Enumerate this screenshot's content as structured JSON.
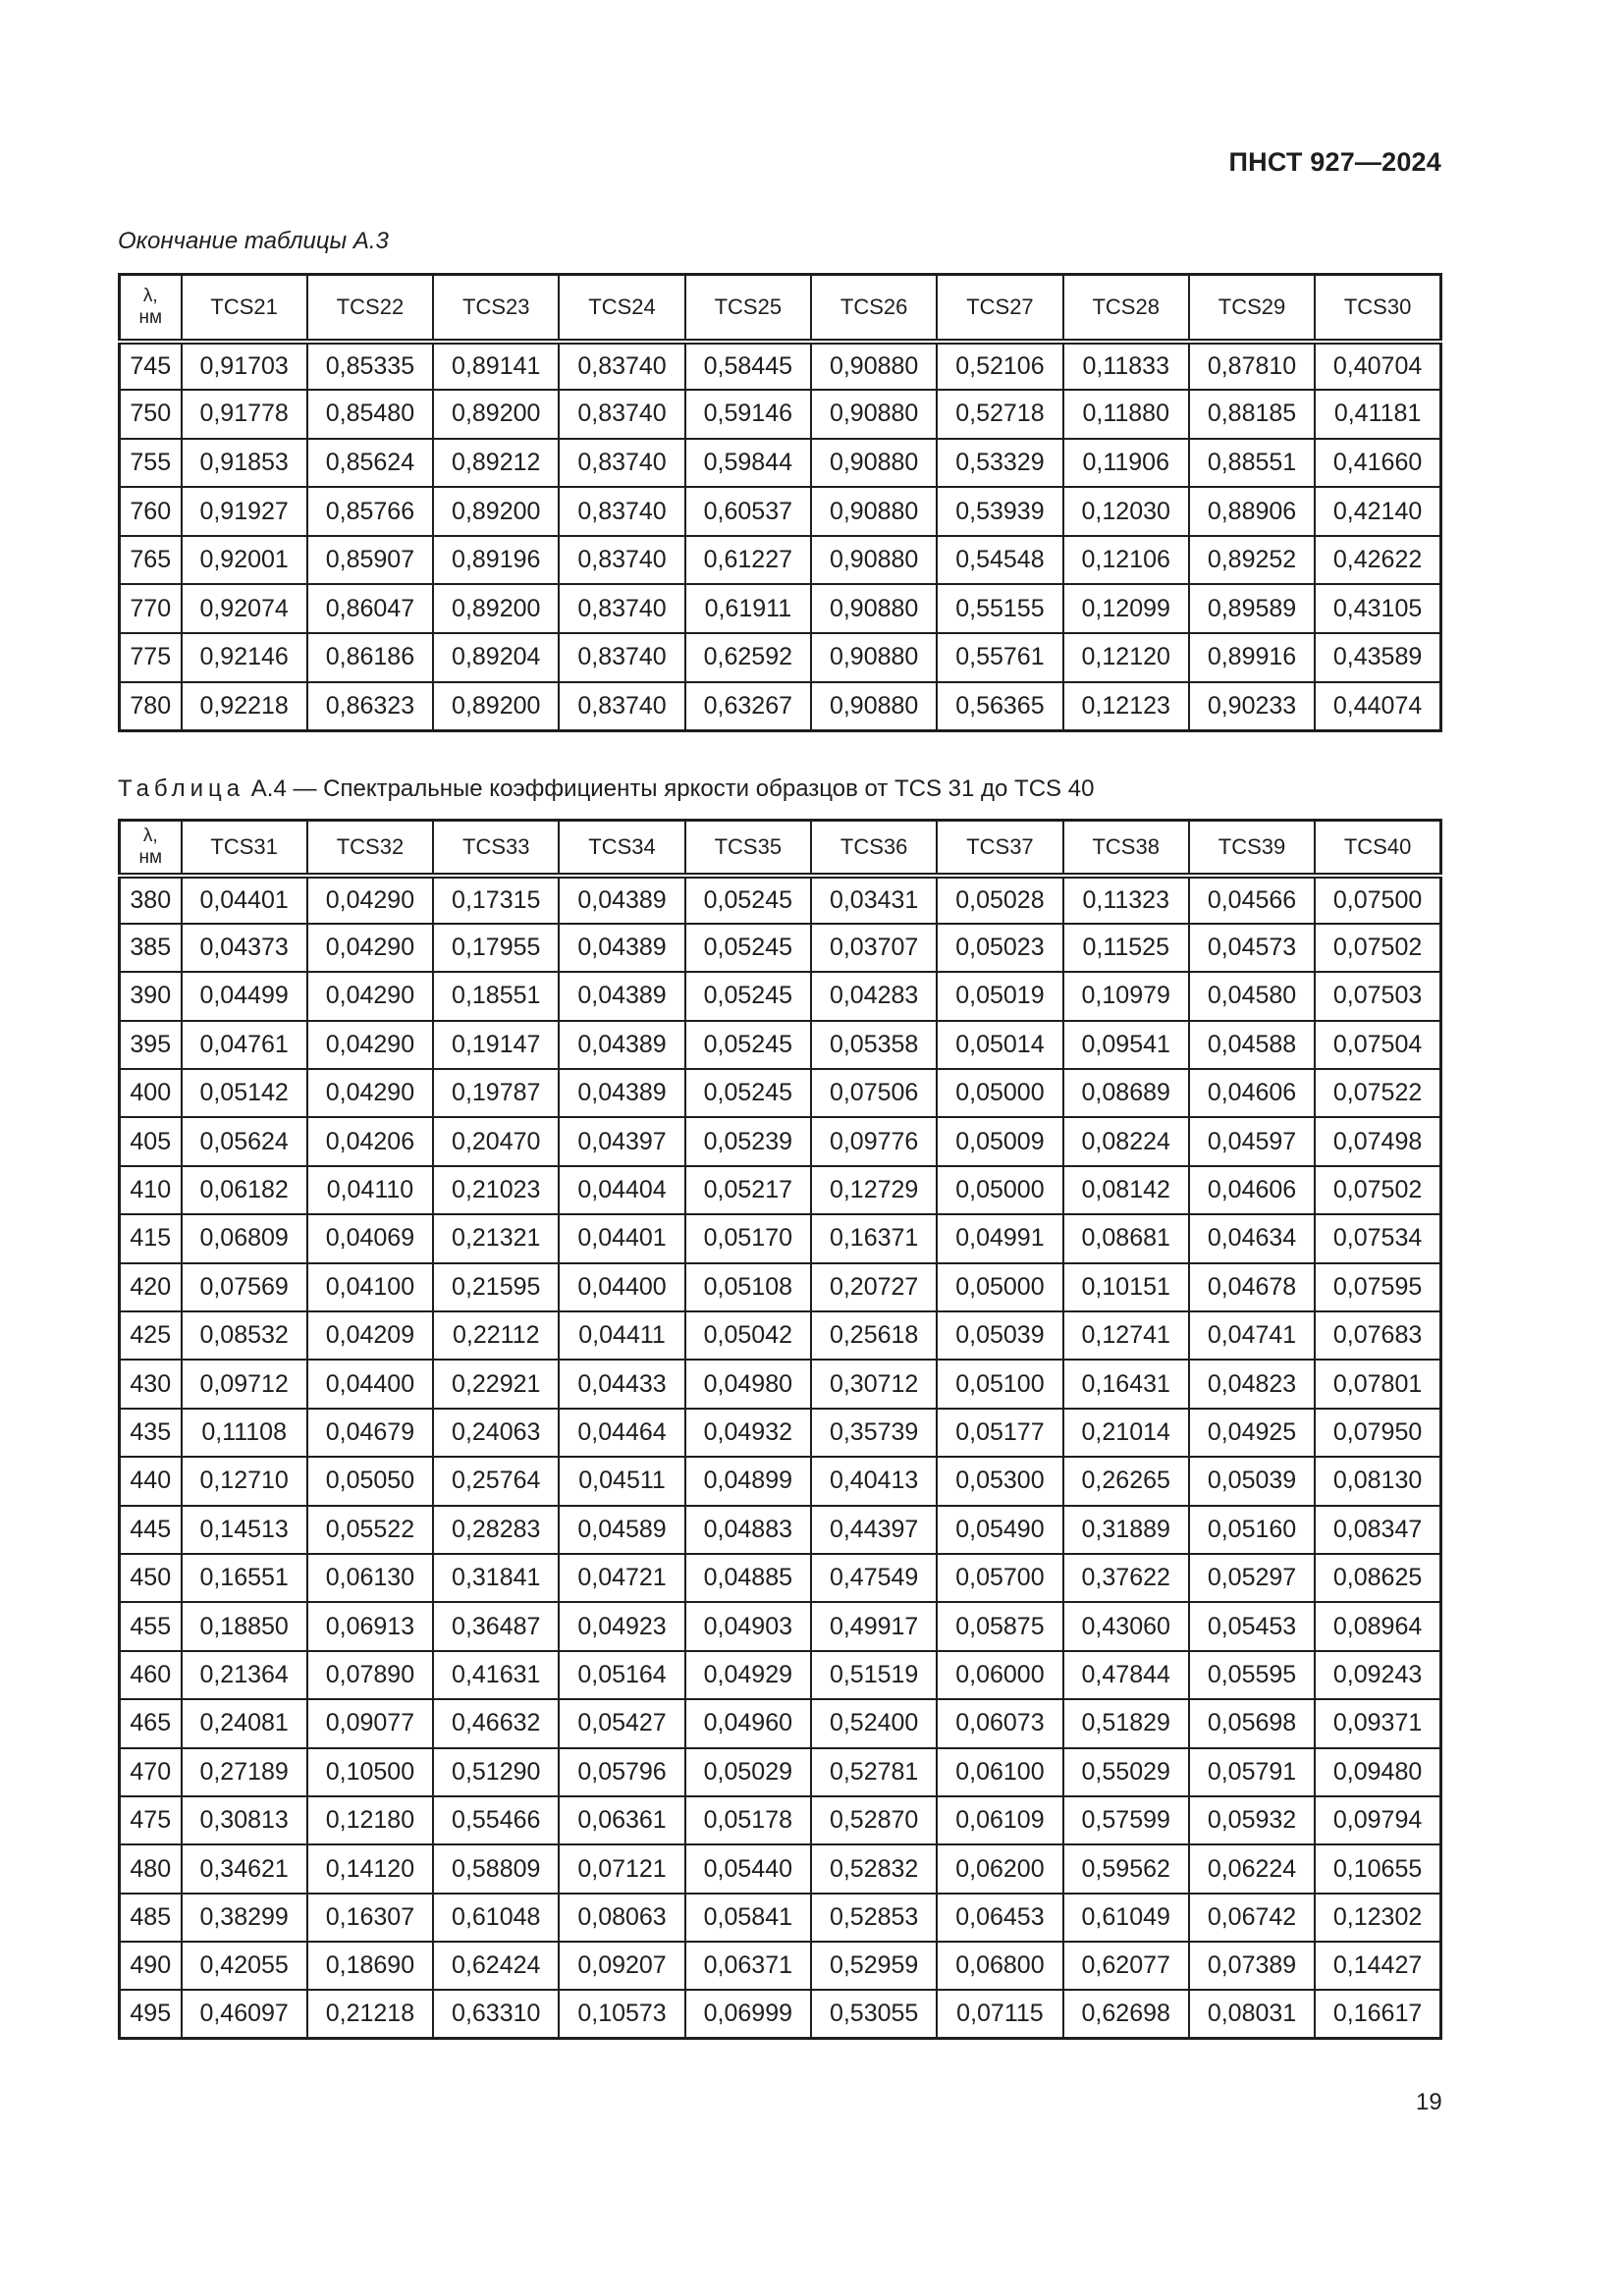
{
  "header": {
    "doc_code": "ПНСТ 927—2024"
  },
  "table_a3": {
    "caption": "Окончание таблицы А.3",
    "lambda_symbol": "λ,",
    "lambda_unit": "нм",
    "columns": [
      "TCS21",
      "TCS22",
      "TCS23",
      "TCS24",
      "TCS25",
      "TCS26",
      "TCS27",
      "TCS28",
      "TCS29",
      "TCS30"
    ],
    "rows": [
      [
        "745",
        "0,91703",
        "0,85335",
        "0,89141",
        "0,83740",
        "0,58445",
        "0,90880",
        "0,52106",
        "0,11833",
        "0,87810",
        "0,40704"
      ],
      [
        "750",
        "0,91778",
        "0,85480",
        "0,89200",
        "0,83740",
        "0,59146",
        "0,90880",
        "0,52718",
        "0,11880",
        "0,88185",
        "0,41181"
      ],
      [
        "755",
        "0,91853",
        "0,85624",
        "0,89212",
        "0,83740",
        "0,59844",
        "0,90880",
        "0,53329",
        "0,11906",
        "0,88551",
        "0,41660"
      ],
      [
        "760",
        "0,91927",
        "0,85766",
        "0,89200",
        "0,83740",
        "0,60537",
        "0,90880",
        "0,53939",
        "0,12030",
        "0,88906",
        "0,42140"
      ],
      [
        "765",
        "0,92001",
        "0,85907",
        "0,89196",
        "0,83740",
        "0,61227",
        "0,90880",
        "0,54548",
        "0,12106",
        "0,89252",
        "0,42622"
      ],
      [
        "770",
        "0,92074",
        "0,86047",
        "0,89200",
        "0,83740",
        "0,61911",
        "0,90880",
        "0,55155",
        "0,12099",
        "0,89589",
        "0,43105"
      ],
      [
        "775",
        "0,92146",
        "0,86186",
        "0,89204",
        "0,83740",
        "0,62592",
        "0,90880",
        "0,55761",
        "0,12120",
        "0,89916",
        "0,43589"
      ],
      [
        "780",
        "0,92218",
        "0,86323",
        "0,89200",
        "0,83740",
        "0,63267",
        "0,90880",
        "0,56365",
        "0,12123",
        "0,90233",
        "0,44074"
      ]
    ]
  },
  "table_a4": {
    "caption_prefix": "Таблица",
    "caption_rest": "А.4 — Спектральные коэффициенты яркости образцов от TCS 31 до TCS 40",
    "lambda_symbol": "λ,",
    "lambda_unit": "нм",
    "columns": [
      "TCS31",
      "TCS32",
      "TCS33",
      "TCS34",
      "TCS35",
      "TCS36",
      "TCS37",
      "TCS38",
      "TCS39",
      "TCS40"
    ],
    "rows": [
      [
        "380",
        "0,04401",
        "0,04290",
        "0,17315",
        "0,04389",
        "0,05245",
        "0,03431",
        "0,05028",
        "0,11323",
        "0,04566",
        "0,07500"
      ],
      [
        "385",
        "0,04373",
        "0,04290",
        "0,17955",
        "0,04389",
        "0,05245",
        "0,03707",
        "0,05023",
        "0,11525",
        "0,04573",
        "0,07502"
      ],
      [
        "390",
        "0,04499",
        "0,04290",
        "0,18551",
        "0,04389",
        "0,05245",
        "0,04283",
        "0,05019",
        "0,10979",
        "0,04580",
        "0,07503"
      ],
      [
        "395",
        "0,04761",
        "0,04290",
        "0,19147",
        "0,04389",
        "0,05245",
        "0,05358",
        "0,05014",
        "0,09541",
        "0,04588",
        "0,07504"
      ],
      [
        "400",
        "0,05142",
        "0,04290",
        "0,19787",
        "0,04389",
        "0,05245",
        "0,07506",
        "0,05000",
        "0,08689",
        "0,04606",
        "0,07522"
      ],
      [
        "405",
        "0,05624",
        "0,04206",
        "0,20470",
        "0,04397",
        "0,05239",
        "0,09776",
        "0,05009",
        "0,08224",
        "0,04597",
        "0,07498"
      ],
      [
        "410",
        "0,06182",
        "0,04110",
        "0,21023",
        "0,04404",
        "0,05217",
        "0,12729",
        "0,05000",
        "0,08142",
        "0,04606",
        "0,07502"
      ],
      [
        "415",
        "0,06809",
        "0,04069",
        "0,21321",
        "0,04401",
        "0,05170",
        "0,16371",
        "0,04991",
        "0,08681",
        "0,04634",
        "0,07534"
      ],
      [
        "420",
        "0,07569",
        "0,04100",
        "0,21595",
        "0,04400",
        "0,05108",
        "0,20727",
        "0,05000",
        "0,10151",
        "0,04678",
        "0,07595"
      ],
      [
        "425",
        "0,08532",
        "0,04209",
        "0,22112",
        "0,04411",
        "0,05042",
        "0,25618",
        "0,05039",
        "0,12741",
        "0,04741",
        "0,07683"
      ],
      [
        "430",
        "0,09712",
        "0,04400",
        "0,22921",
        "0,04433",
        "0,04980",
        "0,30712",
        "0,05100",
        "0,16431",
        "0,04823",
        "0,07801"
      ],
      [
        "435",
        "0,11108",
        "0,04679",
        "0,24063",
        "0,04464",
        "0,04932",
        "0,35739",
        "0,05177",
        "0,21014",
        "0,04925",
        "0,07950"
      ],
      [
        "440",
        "0,12710",
        "0,05050",
        "0,25764",
        "0,04511",
        "0,04899",
        "0,40413",
        "0,05300",
        "0,26265",
        "0,05039",
        "0,08130"
      ],
      [
        "445",
        "0,14513",
        "0,05522",
        "0,28283",
        "0,04589",
        "0,04883",
        "0,44397",
        "0,05490",
        "0,31889",
        "0,05160",
        "0,08347"
      ],
      [
        "450",
        "0,16551",
        "0,06130",
        "0,31841",
        "0,04721",
        "0,04885",
        "0,47549",
        "0,05700",
        "0,37622",
        "0,05297",
        "0,08625"
      ],
      [
        "455",
        "0,18850",
        "0,06913",
        "0,36487",
        "0,04923",
        "0,04903",
        "0,49917",
        "0,05875",
        "0,43060",
        "0,05453",
        "0,08964"
      ],
      [
        "460",
        "0,21364",
        "0,07890",
        "0,41631",
        "0,05164",
        "0,04929",
        "0,51519",
        "0,06000",
        "0,47844",
        "0,05595",
        "0,09243"
      ],
      [
        "465",
        "0,24081",
        "0,09077",
        "0,46632",
        "0,05427",
        "0,04960",
        "0,52400",
        "0,06073",
        "0,51829",
        "0,05698",
        "0,09371"
      ],
      [
        "470",
        "0,27189",
        "0,10500",
        "0,51290",
        "0,05796",
        "0,05029",
        "0,52781",
        "0,06100",
        "0,55029",
        "0,05791",
        "0,09480"
      ],
      [
        "475",
        "0,30813",
        "0,12180",
        "0,55466",
        "0,06361",
        "0,05178",
        "0,52870",
        "0,06109",
        "0,57599",
        "0,05932",
        "0,09794"
      ],
      [
        "480",
        "0,34621",
        "0,14120",
        "0,58809",
        "0,07121",
        "0,05440",
        "0,52832",
        "0,06200",
        "0,59562",
        "0,06224",
        "0,10655"
      ],
      [
        "485",
        "0,38299",
        "0,16307",
        "0,61048",
        "0,08063",
        "0,05841",
        "0,52853",
        "0,06453",
        "0,61049",
        "0,06742",
        "0,12302"
      ],
      [
        "490",
        "0,42055",
        "0,18690",
        "0,62424",
        "0,09207",
        "0,06371",
        "0,52959",
        "0,06800",
        "0,62077",
        "0,07389",
        "0,14427"
      ],
      [
        "495",
        "0,46097",
        "0,21218",
        "0,63310",
        "0,10573",
        "0,06999",
        "0,53055",
        "0,07115",
        "0,62698",
        "0,08031",
        "0,16617"
      ]
    ]
  },
  "footer": {
    "page_number": "19"
  }
}
